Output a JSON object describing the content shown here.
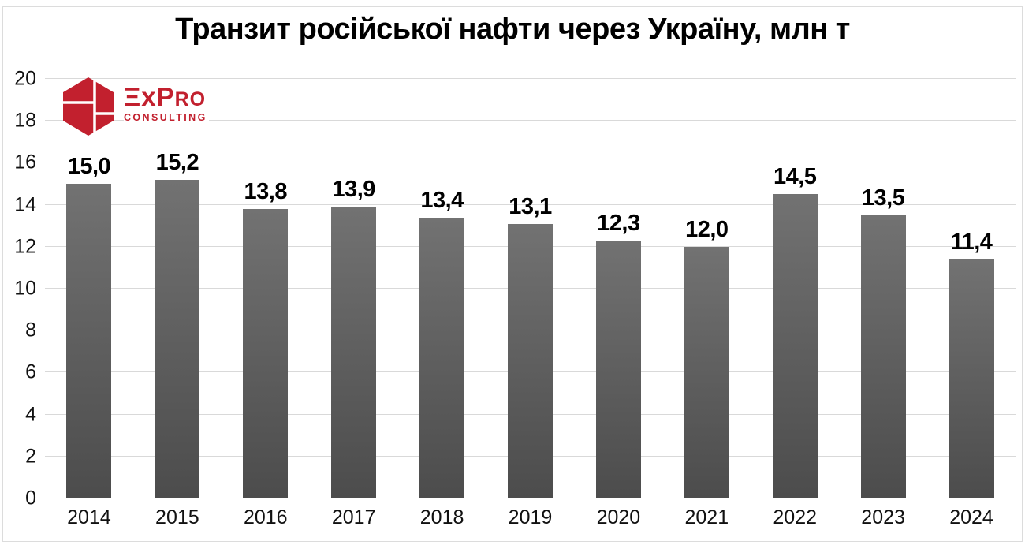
{
  "title": "Транзит російської нафти через Україну, млн т",
  "logo": {
    "brand": "ExPro",
    "brand_display": {
      "e": "Ξ",
      "x": "x",
      "p": "P",
      "ro": "RO"
    },
    "sub": "CONSULTING",
    "accent_color": "#c2202e"
  },
  "chart_data": {
    "type": "bar",
    "title": "Транзит російської нафти через Україну, млн т",
    "categories": [
      "2014",
      "2015",
      "2016",
      "2017",
      "2018",
      "2019",
      "2020",
      "2021",
      "2022",
      "2023",
      "2024"
    ],
    "values": [
      15.0,
      15.2,
      13.8,
      13.9,
      13.4,
      13.1,
      12.3,
      12.0,
      14.5,
      13.5,
      11.4
    ],
    "value_labels": [
      "15,0",
      "15,2",
      "13,8",
      "13,9",
      "13,4",
      "13,1",
      "12,3",
      "12,0",
      "14,5",
      "13,5",
      "11,4"
    ],
    "xlabel": "",
    "ylabel": "",
    "ylim": [
      0,
      20
    ],
    "ytick_step": 2,
    "grid": true,
    "legend_position": "none",
    "bar_color_top": "#727272",
    "bar_color_bottom": "#4c4c4c",
    "gridline_color": "#d9d9d9"
  }
}
